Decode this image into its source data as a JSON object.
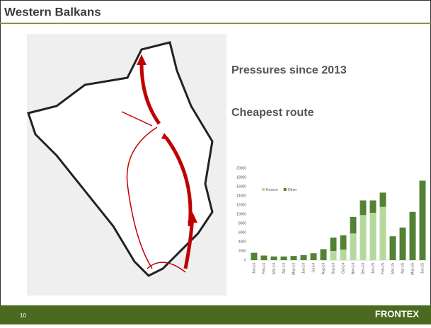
{
  "slide": {
    "title": "Western Balkans",
    "bullets": [
      "Pressures since 2013",
      "Cheapest route"
    ],
    "page_number": "10",
    "footer_logo": "FRONTEX"
  },
  "chart_data": {
    "type": "stacked_bar",
    "categories": [
      "Jan-14",
      "Feb-14",
      "Mar-14",
      "Apr-14",
      "May-14",
      "Jun-14",
      "Jul-14",
      "Aug-14",
      "Sep-14",
      "Oct-14",
      "Nov-14",
      "Dec-14",
      "Jan-15",
      "Feb-15",
      "Mar-15",
      "Apr-15",
      "May-15",
      "Jun-15"
    ],
    "series": [
      {
        "name": "Kosovo",
        "color": "#b5d99c",
        "values": [
          0,
          0,
          0,
          0,
          0,
          0,
          0,
          0,
          2000,
          2300,
          5800,
          9800,
          10300,
          11600,
          0,
          0,
          0,
          0
        ]
      },
      {
        "name": "Other",
        "color": "#548235",
        "values": [
          1600,
          1000,
          800,
          800,
          900,
          1100,
          1500,
          2400,
          2900,
          3100,
          3600,
          3200,
          2700,
          3100,
          5200,
          7100,
          10500,
          17300
        ]
      }
    ],
    "ylim": [
      0,
      20000
    ],
    "yticks": [
      0,
      2000,
      4000,
      6000,
      8000,
      10000,
      12000,
      14000,
      16000,
      18000,
      20000
    ],
    "grid": false,
    "legend": "top-left"
  }
}
